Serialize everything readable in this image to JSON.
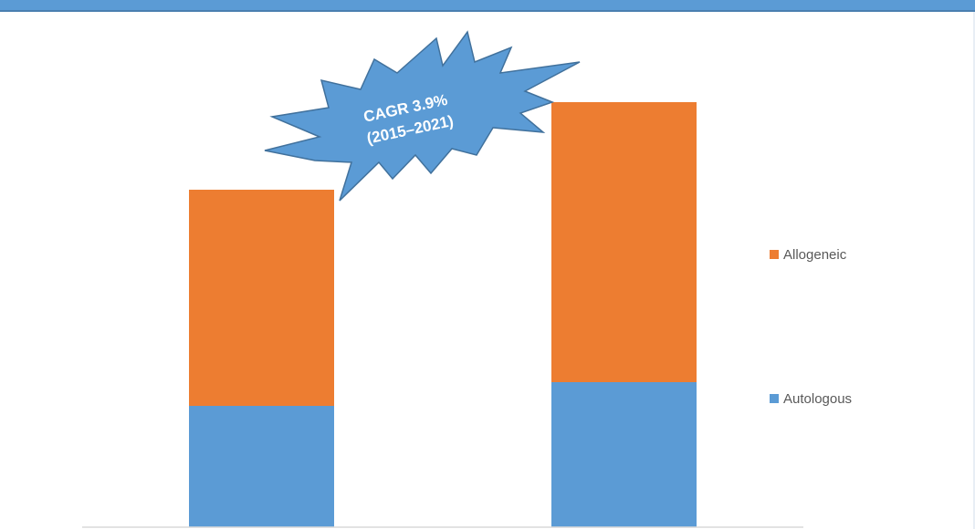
{
  "chart_data": {
    "type": "bar",
    "stacked": true,
    "categories": [
      "",
      ""
    ],
    "series": [
      {
        "name": "Autologous",
        "color": "#5b9bd5",
        "values": [
          133,
          159
        ]
      },
      {
        "name": "Allogeneic",
        "color": "#ed7d31",
        "values": [
          237,
          307
        ]
      }
    ],
    "ylim": [
      0,
      470
    ],
    "grid": false,
    "legend_position": "right",
    "annotation": {
      "line1": "CAGR 3.9%",
      "line2": "(2015–2021)",
      "shape": "explosion",
      "color": "#5b9bd5"
    }
  },
  "header_bar_color": "#5b9bd5"
}
